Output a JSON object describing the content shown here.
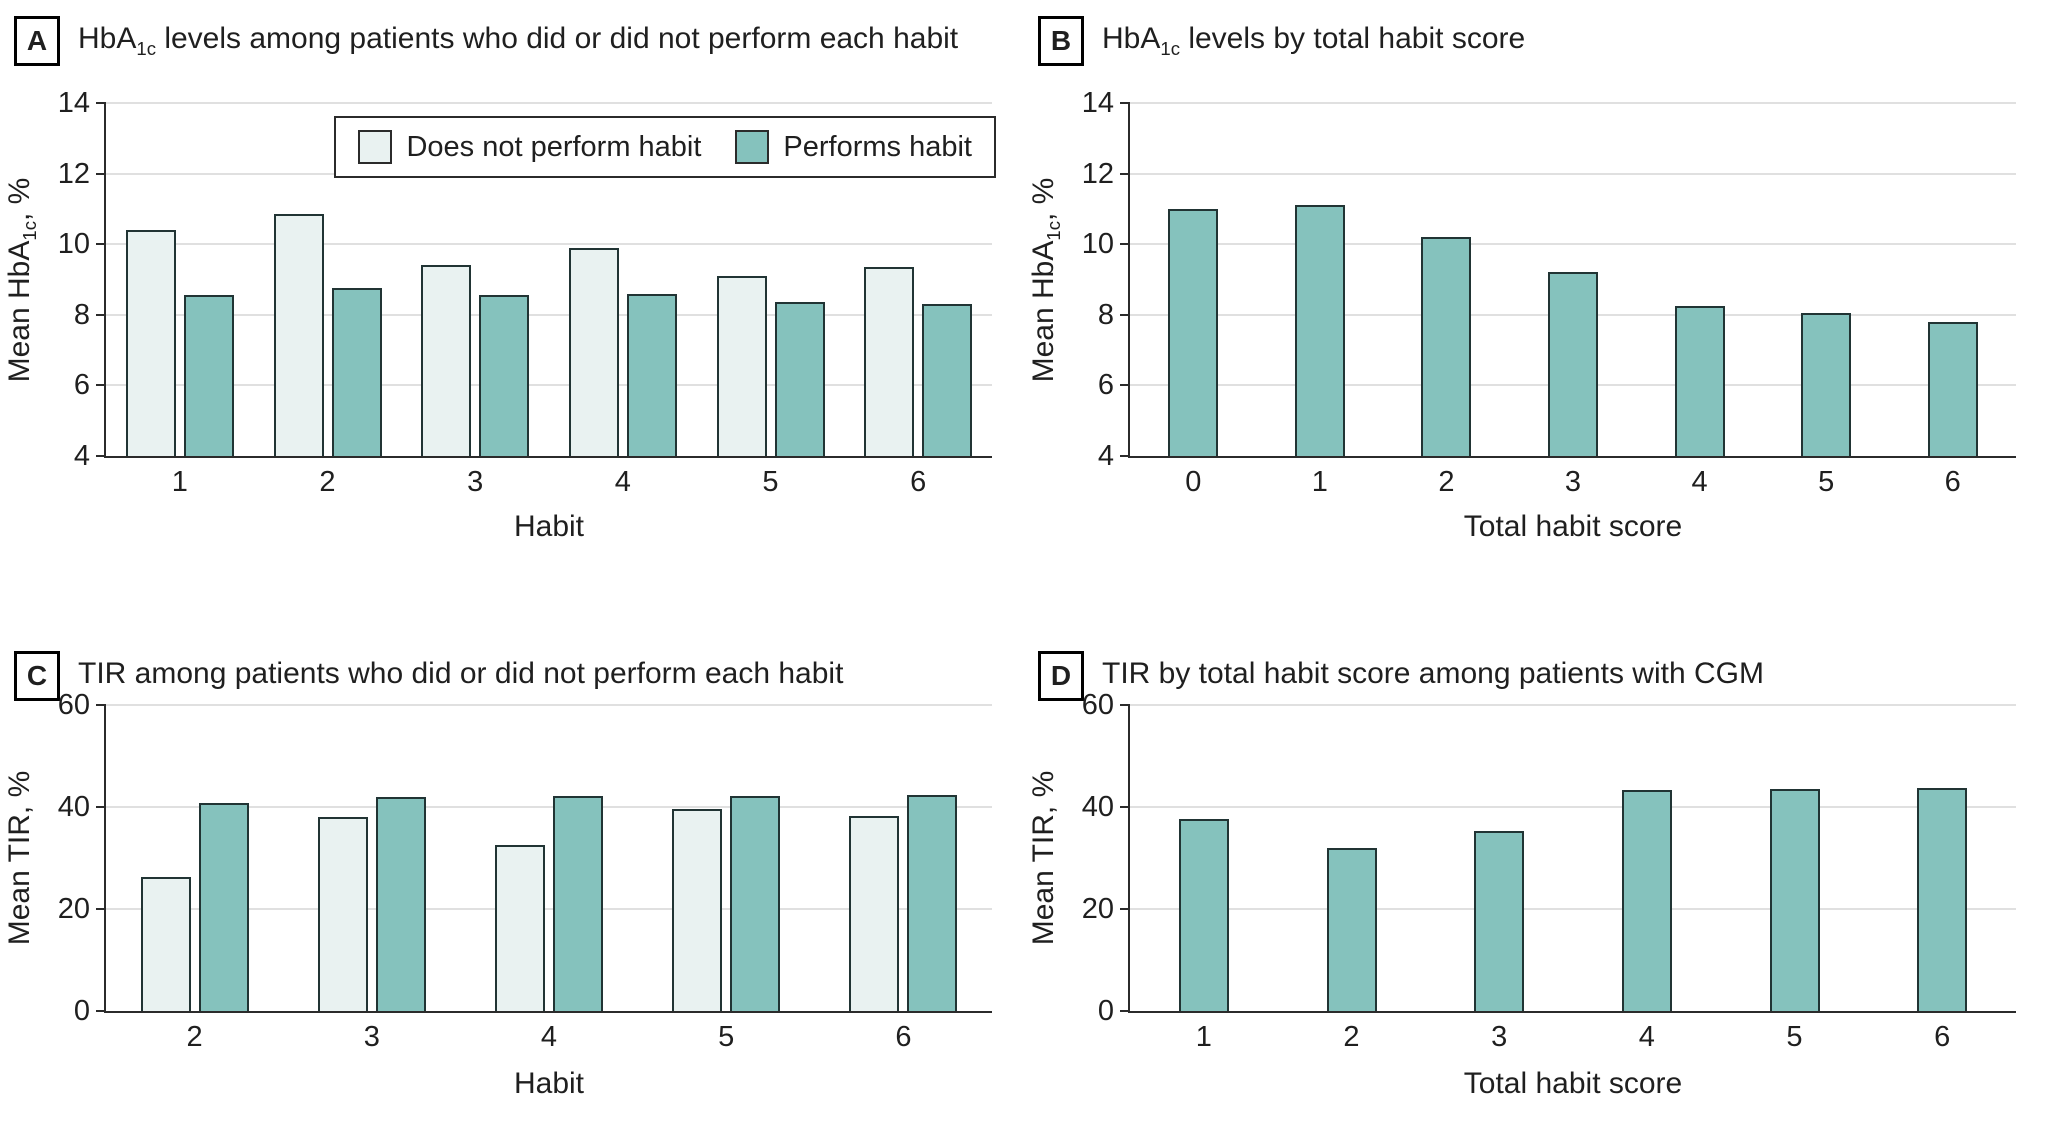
{
  "figure": {
    "colors": {
      "does_not_perform": "#e9f2f1",
      "performs": "#85c2bd",
      "bar_border": "#213434",
      "gridline": "#e0e0e0",
      "axis": "#2b2b2b",
      "text": "#1f1f1f"
    }
  },
  "chart_data": [
    {
      "panel": "A",
      "type": "bar",
      "title": {
        "pre": "HbA",
        "sub": "1c",
        "post": " levels among patients who did or did not perform each habit"
      },
      "categories": [
        "1",
        "2",
        "3",
        "4",
        "5",
        "6"
      ],
      "series": [
        {
          "name": "Does not perform habit",
          "color_key": "does_not_perform",
          "values": [
            10.4,
            10.85,
            9.4,
            9.9,
            9.1,
            9.35
          ]
        },
        {
          "name": "Performs habit",
          "color_key": "performs",
          "values": [
            8.55,
            8.75,
            8.55,
            8.6,
            8.35,
            8.3
          ]
        }
      ],
      "xlabel": "Habit",
      "ylabel": {
        "pre": "Mean HbA",
        "sub": "1c",
        "post": ", %"
      },
      "ylim": [
        4,
        14
      ],
      "yticks": [
        4,
        6,
        8,
        10,
        12,
        14
      ],
      "legend_position": "top-right",
      "grid": true
    },
    {
      "panel": "B",
      "type": "bar",
      "title": {
        "pre": "HbA",
        "sub": "1c",
        "post": " levels by total habit score"
      },
      "categories": [
        "0",
        "1",
        "2",
        "3",
        "4",
        "5",
        "6"
      ],
      "series": [
        {
          "name": "Performs habit",
          "color_key": "performs",
          "values": [
            11.0,
            11.1,
            10.2,
            9.2,
            8.25,
            8.05,
            7.8
          ]
        }
      ],
      "xlabel": "Total habit score",
      "ylabel": {
        "pre": "Mean HbA",
        "sub": "1c",
        "post": ", %"
      },
      "ylim": [
        4,
        14
      ],
      "yticks": [
        4,
        6,
        8,
        10,
        12,
        14
      ],
      "legend_position": "none",
      "grid": true
    },
    {
      "panel": "C",
      "type": "bar",
      "title": {
        "pre": "TIR among patients who did or did not perform each habit",
        "sub": "",
        "post": ""
      },
      "categories": [
        "2",
        "3",
        "4",
        "5",
        "6"
      ],
      "series": [
        {
          "name": "Does not perform habit",
          "color_key": "does_not_perform",
          "values": [
            26.3,
            38.1,
            32.6,
            39.7,
            38.2
          ]
        },
        {
          "name": "Performs habit",
          "color_key": "performs",
          "values": [
            40.8,
            42.0,
            42.2,
            42.2,
            42.4
          ]
        }
      ],
      "xlabel": "Habit",
      "ylabel": {
        "pre": "Mean TIR, %",
        "sub": "",
        "post": ""
      },
      "ylim": [
        0,
        60
      ],
      "yticks": [
        0,
        20,
        40,
        60
      ],
      "legend_position": "none",
      "grid": true
    },
    {
      "panel": "D",
      "type": "bar",
      "title": {
        "pre": "TIR by total habit score among patients with CGM",
        "sub": "",
        "post": ""
      },
      "categories": [
        "1",
        "2",
        "3",
        "4",
        "5",
        "6"
      ],
      "series": [
        {
          "name": "Performs habit",
          "color_key": "performs",
          "values": [
            37.6,
            31.9,
            35.2,
            43.4,
            43.5,
            43.7
          ]
        }
      ],
      "xlabel": "Total habit score",
      "ylabel": {
        "pre": "Mean TIR, %",
        "sub": "",
        "post": ""
      },
      "ylim": [
        0,
        60
      ],
      "yticks": [
        0,
        20,
        40,
        60
      ],
      "legend_position": "none",
      "grid": true
    }
  ]
}
